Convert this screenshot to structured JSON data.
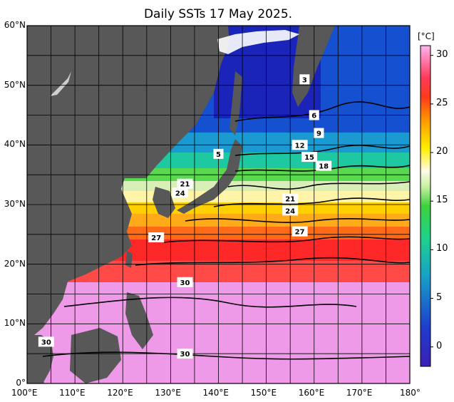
{
  "title": "Daily SSTs 17 May 2025.",
  "colorbar": {
    "unit": "[°C]",
    "ticks": [
      "30",
      "25",
      "20",
      "15",
      "10",
      "5",
      "0"
    ],
    "tick_values": [
      30,
      25,
      20,
      15,
      10,
      5,
      0
    ],
    "range": [
      -2,
      31
    ]
  },
  "lat_labels": [
    "60°N",
    "50°N",
    "40°N",
    "30°N",
    "20°N",
    "10°N",
    "0°"
  ],
  "lat_values": [
    60,
    50,
    40,
    30,
    20,
    10,
    0
  ],
  "lon_labels": [
    "100°E",
    "110°E",
    "120°E",
    "130°E",
    "140°E",
    "150°E",
    "160°E",
    "170°E",
    "180°"
  ],
  "lon_values": [
    100,
    110,
    120,
    130,
    140,
    150,
    160,
    170,
    180
  ],
  "contour_labels": [
    {
      "text": "3",
      "lon": 158,
      "lat": 51
    },
    {
      "text": "6",
      "lon": 160,
      "lat": 45
    },
    {
      "text": "9",
      "lon": 161,
      "lat": 42
    },
    {
      "text": "12",
      "lon": 157,
      "lat": 40
    },
    {
      "text": "15",
      "lon": 159,
      "lat": 38
    },
    {
      "text": "18",
      "lon": 162,
      "lat": 36.5
    },
    {
      "text": "5",
      "lon": 140,
      "lat": 38.5
    },
    {
      "text": "21",
      "lon": 155,
      "lat": 31
    },
    {
      "text": "24",
      "lon": 155,
      "lat": 29
    },
    {
      "text": "24",
      "lon": 132,
      "lat": 32
    },
    {
      "text": "21",
      "lon": 133,
      "lat": 33.5
    },
    {
      "text": "27",
      "lon": 157,
      "lat": 25.5
    },
    {
      "text": "27",
      "lon": 127,
      "lat": 24.5
    },
    {
      "text": "30",
      "lon": 133,
      "lat": 17
    },
    {
      "text": "30",
      "lon": 104,
      "lat": 7
    },
    {
      "text": "30",
      "lon": 133,
      "lat": 5
    }
  ],
  "colors": {
    "land": "#585858",
    "ice": "#ffffff",
    "frame": "#000000"
  }
}
